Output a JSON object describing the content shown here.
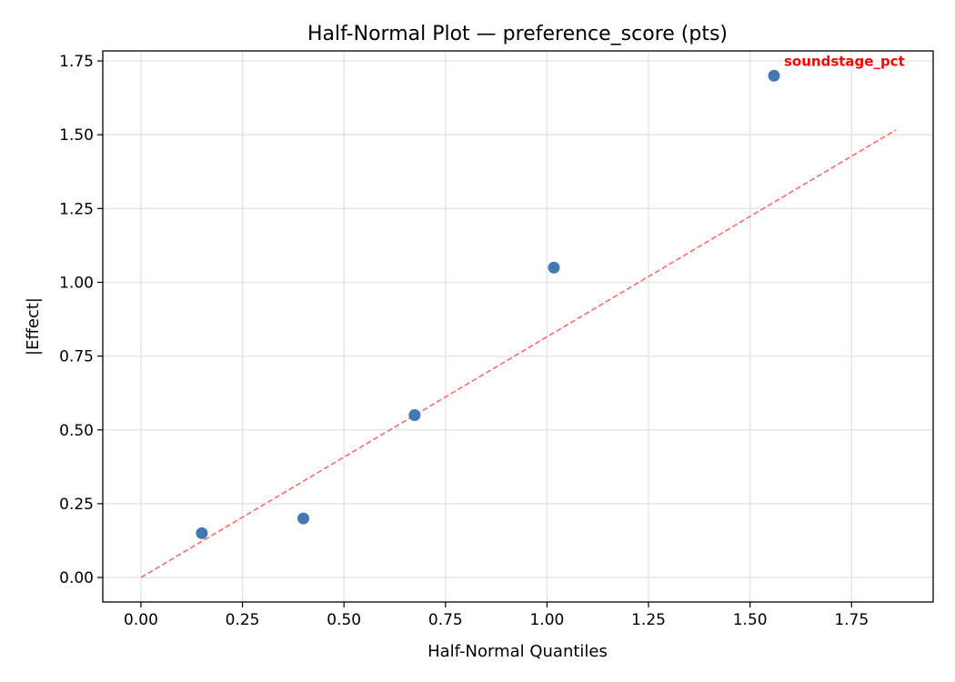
{
  "chart_data": {
    "type": "scatter",
    "title": "Half-Normal Plot — preference_score (pts)",
    "xlabel": "Half-Normal Quantiles",
    "ylabel": "|Effect|",
    "xlim": [
      -0.094,
      1.951
    ],
    "ylim": [
      -0.083,
      1.784
    ],
    "grid": true,
    "xticks": [
      0,
      0.25,
      0.5,
      0.75,
      1.0,
      1.25,
      1.5,
      1.75
    ],
    "xtick_labels": [
      "0.00",
      "0.25",
      "0.50",
      "0.75",
      "1.00",
      "1.25",
      "1.50",
      "1.75"
    ],
    "yticks": [
      0,
      0.25,
      0.5,
      0.75,
      1.0,
      1.25,
      1.5,
      1.75
    ],
    "ytick_labels": [
      "0.00",
      "0.25",
      "0.50",
      "0.75",
      "1.00",
      "1.25",
      "1.50",
      "1.75"
    ],
    "points": [
      {
        "x": 0.15,
        "y": 0.15
      },
      {
        "x": 0.4,
        "y": 0.2
      },
      {
        "x": 0.674,
        "y": 0.55
      },
      {
        "x": 1.017,
        "y": 1.05
      },
      {
        "x": 1.559,
        "y": 1.7,
        "label": "soundstage_pct"
      }
    ],
    "reference_line": {
      "x": [
        0,
        1.859
      ],
      "y": [
        0,
        1.516
      ],
      "style": "dashed"
    },
    "colors": {
      "points": "#4279b0",
      "line": "#ff6b6b",
      "label": "#ff0000"
    }
  }
}
